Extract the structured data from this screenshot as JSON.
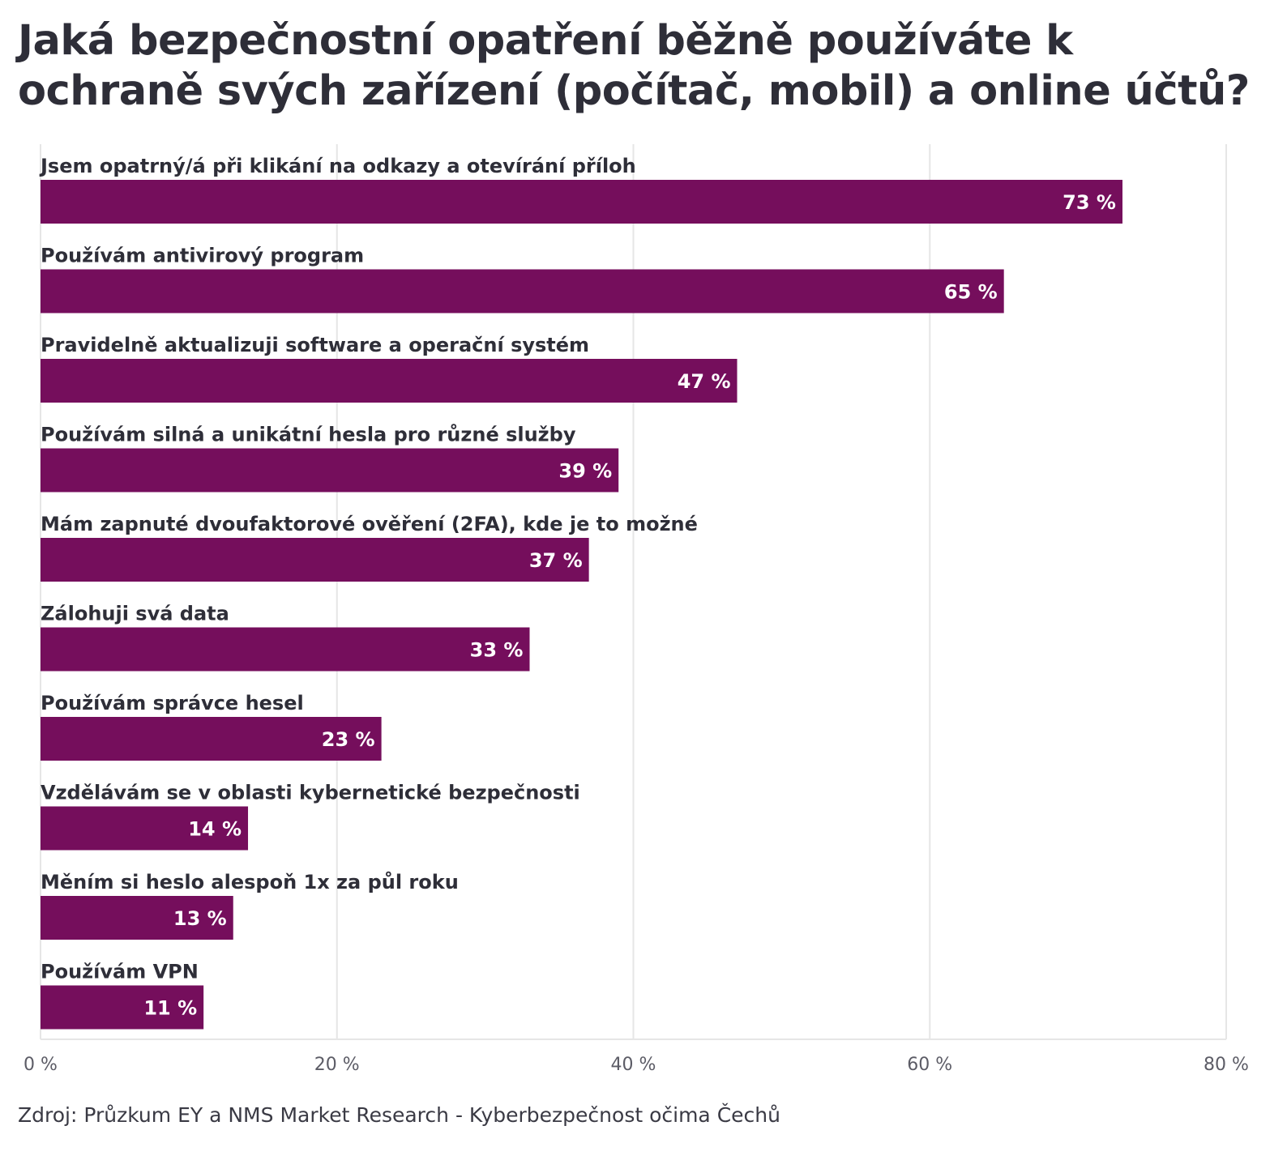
{
  "chart_data": {
    "type": "bar",
    "orientation": "horizontal",
    "title": "Jaká bezpečnostní opatření běžně používáte k ochraně svých zařízení (počítač, mobil) a online účtů?",
    "categories": [
      "Jsem opatrný/á při klikání na odkazy a otevírání příloh",
      "Používám antivirový program",
      "Pravidelně aktualizuji software a operační systém",
      "Používám silná a unikátní hesla pro různé služby",
      "Mám zapnuté dvoufaktorové ověření (2FA), kde je to možné",
      "Zálohuji svá data",
      "Používám správce hesel",
      "Vzdělávám se v oblasti kybernetické bezpečnosti",
      "Měním si heslo alespoň 1x za půl roku",
      "Používám VPN"
    ],
    "values": [
      73,
      65,
      47,
      39,
      37,
      33,
      23,
      14,
      13,
      11
    ],
    "value_labels": [
      "73 %",
      "65 %",
      "47 %",
      "39 %",
      "37 %",
      "33 %",
      "23 %",
      "14 %",
      "13 %",
      "11 %"
    ],
    "xlim": [
      0,
      80
    ],
    "x_ticks": [
      0,
      20,
      40,
      60,
      80
    ],
    "x_tick_labels": [
      "0 %",
      "20 %",
      "40 %",
      "60 %",
      "80 %"
    ],
    "grid": true,
    "bar_color": "#750e5c",
    "source": "Zdroj: Průzkum EY a NMS Market Research - Kyberbezpečnost očima Čechů"
  }
}
